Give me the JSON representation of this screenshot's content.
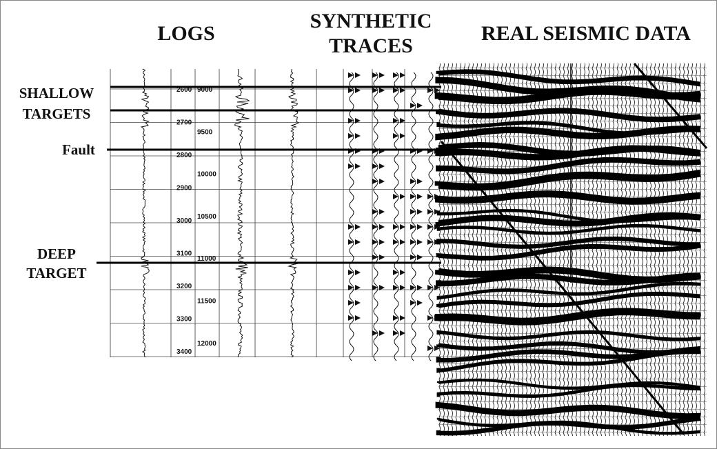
{
  "headings": {
    "logs": "LOGS",
    "synthetic": [
      "SYNTHETIC",
      "TRACES"
    ],
    "seismic": "REAL SEISMIC DATA"
  },
  "labels": {
    "shallow": [
      "SHALLOW",
      "TARGETS"
    ],
    "fault": "Fault",
    "deep": [
      "DEEP",
      "TARGET"
    ]
  },
  "depth_scale_1": [
    2600,
    2700,
    2800,
    2900,
    3000,
    3100,
    3200,
    3300,
    3400
  ],
  "depth_scale_2": [
    9000,
    9500,
    10000,
    10500,
    11000,
    11500,
    12000
  ]
}
